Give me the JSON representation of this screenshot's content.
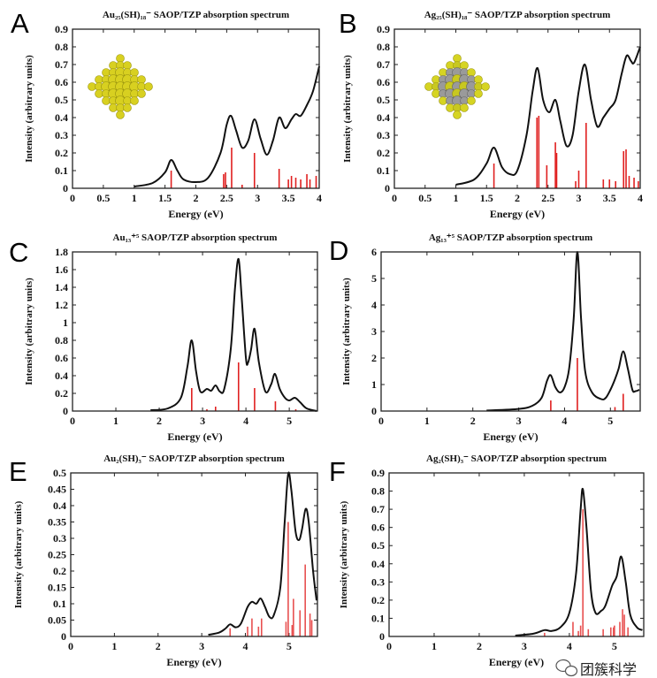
{
  "chart_data": [
    {
      "panel": "A",
      "type": "line",
      "title": "Au₂₅(SH)₁₈⁻ SAOP/TZP absorption spectrum",
      "xlabel": "Energy (eV)",
      "ylabel": "Intensity (arbitrary units)",
      "xlim": [
        0,
        4
      ],
      "ylim": [
        0,
        0.9
      ],
      "xticks": [
        0,
        0.5,
        1,
        1.5,
        2,
        2.5,
        3,
        3.5,
        4
      ],
      "yticks": [
        0,
        0.1,
        0.2,
        0.3,
        0.4,
        0.5,
        0.6,
        0.7,
        0.8,
        0.9
      ],
      "inset": "Au25 cluster structure (yellow)",
      "curve_color": "#111111",
      "stick_color": "#e02020",
      "curve": [
        [
          1.0,
          0.01
        ],
        [
          1.3,
          0.03
        ],
        [
          1.5,
          0.09
        ],
        [
          1.6,
          0.16
        ],
        [
          1.7,
          0.1
        ],
        [
          1.8,
          0.05
        ],
        [
          2.0,
          0.035
        ],
        [
          2.2,
          0.06
        ],
        [
          2.4,
          0.2
        ],
        [
          2.5,
          0.36
        ],
        [
          2.57,
          0.41
        ],
        [
          2.65,
          0.33
        ],
        [
          2.75,
          0.23
        ],
        [
          2.85,
          0.27
        ],
        [
          2.95,
          0.39
        ],
        [
          3.05,
          0.28
        ],
        [
          3.15,
          0.19
        ],
        [
          3.25,
          0.27
        ],
        [
          3.35,
          0.4
        ],
        [
          3.45,
          0.34
        ],
        [
          3.55,
          0.39
        ],
        [
          3.62,
          0.42
        ],
        [
          3.7,
          0.41
        ],
        [
          3.8,
          0.47
        ],
        [
          3.9,
          0.55
        ],
        [
          4.0,
          0.69
        ]
      ],
      "sticks": [
        [
          1.6,
          0.1
        ],
        [
          2.45,
          0.08
        ],
        [
          2.48,
          0.09
        ],
        [
          2.58,
          0.23
        ],
        [
          2.75,
          0.02
        ],
        [
          2.95,
          0.2
        ],
        [
          3.35,
          0.11
        ],
        [
          3.5,
          0.05
        ],
        [
          3.55,
          0.07
        ],
        [
          3.62,
          0.06
        ],
        [
          3.7,
          0.05
        ],
        [
          3.8,
          0.08
        ],
        [
          3.85,
          0.05
        ],
        [
          3.95,
          0.07
        ]
      ]
    },
    {
      "panel": "B",
      "type": "line",
      "title": "Ag₂₅(SH)₁₈⁻ SAOP/TZP absorption spectrum",
      "xlabel": "Energy (eV)",
      "ylabel": "Intensity (arbitrary units)",
      "xlim": [
        0,
        4
      ],
      "ylim": [
        0,
        0.9
      ],
      "xticks": [
        0,
        0.5,
        1,
        1.5,
        2,
        2.5,
        3,
        3.5,
        4
      ],
      "yticks": [
        0,
        0.1,
        0.2,
        0.3,
        0.4,
        0.5,
        0.6,
        0.7,
        0.8,
        0.9
      ],
      "inset": "Ag25 cluster structure (gray/yellow)",
      "curve_color": "#111111",
      "stick_color": "#e02020",
      "curve": [
        [
          1.0,
          0.02
        ],
        [
          1.3,
          0.05
        ],
        [
          1.5,
          0.14
        ],
        [
          1.62,
          0.23
        ],
        [
          1.75,
          0.12
        ],
        [
          1.88,
          0.08
        ],
        [
          2.0,
          0.1
        ],
        [
          2.15,
          0.3
        ],
        [
          2.25,
          0.55
        ],
        [
          2.33,
          0.68
        ],
        [
          2.42,
          0.5
        ],
        [
          2.52,
          0.43
        ],
        [
          2.62,
          0.5
        ],
        [
          2.7,
          0.38
        ],
        [
          2.8,
          0.24
        ],
        [
          2.9,
          0.3
        ],
        [
          3.0,
          0.55
        ],
        [
          3.1,
          0.7
        ],
        [
          3.2,
          0.5
        ],
        [
          3.3,
          0.35
        ],
        [
          3.4,
          0.4
        ],
        [
          3.5,
          0.45
        ],
        [
          3.6,
          0.5
        ],
        [
          3.7,
          0.65
        ],
        [
          3.78,
          0.75
        ],
        [
          3.85,
          0.72
        ],
        [
          3.9,
          0.71
        ],
        [
          4.0,
          0.8
        ]
      ],
      "sticks": [
        [
          1.62,
          0.14
        ],
        [
          2.32,
          0.4
        ],
        [
          2.35,
          0.41
        ],
        [
          2.48,
          0.13
        ],
        [
          2.62,
          0.26
        ],
        [
          2.64,
          0.2
        ],
        [
          2.95,
          0.04
        ],
        [
          3.0,
          0.1
        ],
        [
          3.12,
          0.37
        ],
        [
          3.4,
          0.05
        ],
        [
          3.5,
          0.05
        ],
        [
          3.6,
          0.04
        ],
        [
          3.73,
          0.21
        ],
        [
          3.77,
          0.22
        ],
        [
          3.82,
          0.07
        ],
        [
          3.9,
          0.06
        ],
        [
          3.97,
          0.04
        ]
      ]
    },
    {
      "panel": "C",
      "type": "line",
      "title": "Au₁₃⁺⁵ SAOP/TZP absorption spectrum",
      "xlabel": "Energy (eV)",
      "ylabel": "Intensity (arbitrary units)",
      "xlim": [
        0,
        5.65
      ],
      "ylim": [
        0,
        1.8
      ],
      "xticks": [
        0,
        1,
        2,
        3,
        4,
        5
      ],
      "yticks": [
        0,
        0.2,
        0.4,
        0.6,
        0.8,
        1,
        1.2,
        1.4,
        1.6,
        1.8
      ],
      "curve_color": "#111111",
      "stick_color": "#e02020",
      "curve": [
        [
          1.8,
          0.01
        ],
        [
          2.2,
          0.03
        ],
        [
          2.5,
          0.15
        ],
        [
          2.65,
          0.5
        ],
        [
          2.75,
          0.8
        ],
        [
          2.85,
          0.45
        ],
        [
          2.95,
          0.22
        ],
        [
          3.1,
          0.25
        ],
        [
          3.2,
          0.23
        ],
        [
          3.3,
          0.29
        ],
        [
          3.4,
          0.22
        ],
        [
          3.5,
          0.25
        ],
        [
          3.65,
          0.7
        ],
        [
          3.75,
          1.4
        ],
        [
          3.83,
          1.72
        ],
        [
          3.9,
          1.3
        ],
        [
          4.0,
          0.6
        ],
        [
          4.05,
          0.55
        ],
        [
          4.12,
          0.7
        ],
        [
          4.2,
          0.93
        ],
        [
          4.3,
          0.55
        ],
        [
          4.45,
          0.22
        ],
        [
          4.58,
          0.3
        ],
        [
          4.67,
          0.42
        ],
        [
          4.78,
          0.25
        ],
        [
          4.9,
          0.15
        ],
        [
          5.0,
          0.12
        ],
        [
          5.13,
          0.15
        ],
        [
          5.25,
          0.1
        ],
        [
          5.4,
          0.03
        ],
        [
          5.63,
          0.0
        ]
      ],
      "sticks": [
        [
          2.75,
          0.26
        ],
        [
          3.1,
          0.02
        ],
        [
          3.3,
          0.05
        ],
        [
          3.83,
          0.55
        ],
        [
          4.2,
          0.26
        ],
        [
          4.68,
          0.11
        ],
        [
          5.15,
          0.02
        ]
      ]
    },
    {
      "panel": "D",
      "type": "line",
      "title": "Ag₁₃⁺⁵ SAOP/TZP absorption spectrum",
      "xlabel": "Energy (eV)",
      "ylabel": "Intensity (arbitrary units)",
      "xlim": [
        0,
        5.65
      ],
      "ylim": [
        0,
        6
      ],
      "xticks": [
        0,
        1,
        2,
        3,
        4,
        5
      ],
      "yticks": [
        0,
        1,
        2,
        3,
        4,
        5,
        6
      ],
      "curve_color": "#111111",
      "stick_color": "#e02020",
      "curve": [
        [
          2.3,
          0.02
        ],
        [
          3.0,
          0.08
        ],
        [
          3.3,
          0.2
        ],
        [
          3.5,
          0.5
        ],
        [
          3.62,
          1.15
        ],
        [
          3.7,
          1.35
        ],
        [
          3.8,
          0.9
        ],
        [
          3.9,
          0.7
        ],
        [
          4.0,
          0.9
        ],
        [
          4.1,
          1.6
        ],
        [
          4.2,
          3.5
        ],
        [
          4.28,
          6.0
        ],
        [
          4.36,
          3.5
        ],
        [
          4.45,
          1.5
        ],
        [
          4.6,
          0.7
        ],
        [
          4.8,
          0.45
        ],
        [
          4.9,
          0.5
        ],
        [
          5.0,
          0.8
        ],
        [
          5.1,
          1.2
        ],
        [
          5.18,
          1.6
        ],
        [
          5.28,
          2.25
        ],
        [
          5.38,
          1.6
        ],
        [
          5.48,
          0.8
        ],
        [
          5.55,
          0.75
        ],
        [
          5.63,
          0.8
        ]
      ],
      "sticks": [
        [
          3.7,
          0.4
        ],
        [
          4.28,
          2.0
        ],
        [
          5.1,
          0.15
        ],
        [
          5.28,
          0.65
        ]
      ]
    },
    {
      "panel": "E",
      "type": "line",
      "title": "Au₂(SH)₃⁻ SAOP/TZP absorption spectrum",
      "xlabel": "Energy (eV)",
      "ylabel": "Intensity (arbitrary units)",
      "xlim": [
        0,
        5.65
      ],
      "ylim": [
        0,
        0.5
      ],
      "xticks": [
        0,
        1,
        2,
        3,
        4,
        5
      ],
      "yticks": [
        0,
        0.05,
        0.1,
        0.15,
        0.2,
        0.25,
        0.3,
        0.35,
        0.4,
        0.45,
        0.5
      ],
      "curve_color": "#111111",
      "stick_color": "#e85050",
      "curve": [
        [
          3.15,
          0.005
        ],
        [
          3.4,
          0.012
        ],
        [
          3.55,
          0.025
        ],
        [
          3.65,
          0.037
        ],
        [
          3.78,
          0.028
        ],
        [
          3.9,
          0.04
        ],
        [
          4.05,
          0.09
        ],
        [
          4.15,
          0.106
        ],
        [
          4.25,
          0.1
        ],
        [
          4.35,
          0.116
        ],
        [
          4.45,
          0.09
        ],
        [
          4.55,
          0.06
        ],
        [
          4.65,
          0.065
        ],
        [
          4.8,
          0.15
        ],
        [
          4.9,
          0.35
        ],
        [
          4.98,
          0.497
        ],
        [
          5.05,
          0.45
        ],
        [
          5.15,
          0.32
        ],
        [
          5.23,
          0.295
        ],
        [
          5.3,
          0.33
        ],
        [
          5.38,
          0.39
        ],
        [
          5.45,
          0.35
        ],
        [
          5.55,
          0.2
        ],
        [
          5.63,
          0.11
        ]
      ],
      "sticks": [
        [
          3.65,
          0.025
        ],
        [
          4.05,
          0.03
        ],
        [
          4.15,
          0.055
        ],
        [
          4.3,
          0.03
        ],
        [
          4.37,
          0.055
        ],
        [
          4.93,
          0.045
        ],
        [
          4.98,
          0.35
        ],
        [
          5.07,
          0.035
        ],
        [
          5.1,
          0.115
        ],
        [
          5.25,
          0.08
        ],
        [
          5.37,
          0.22
        ],
        [
          5.48,
          0.07
        ],
        [
          5.52,
          0.05
        ]
      ]
    },
    {
      "panel": "F",
      "type": "line",
      "title": "Ag₂(SH)₃⁻ SAOP/TZP absorption spectrum",
      "xlabel": "Energy (eV)",
      "ylabel": "Intensity (arbitrary units)",
      "xlim": [
        0,
        5.65
      ],
      "ylim": [
        0,
        0.9
      ],
      "xticks": [
        0,
        1,
        2,
        3,
        4,
        5
      ],
      "yticks": [
        0,
        0.1,
        0.2,
        0.3,
        0.4,
        0.5,
        0.6,
        0.7,
        0.8,
        0.9
      ],
      "curve_color": "#111111",
      "stick_color": "#e85050",
      "curve": [
        [
          2.8,
          0.005
        ],
        [
          3.2,
          0.015
        ],
        [
          3.45,
          0.035
        ],
        [
          3.6,
          0.03
        ],
        [
          3.8,
          0.05
        ],
        [
          4.0,
          0.13
        ],
        [
          4.15,
          0.35
        ],
        [
          4.25,
          0.7
        ],
        [
          4.3,
          0.81
        ],
        [
          4.38,
          0.6
        ],
        [
          4.48,
          0.25
        ],
        [
          4.58,
          0.13
        ],
        [
          4.7,
          0.14
        ],
        [
          4.8,
          0.17
        ],
        [
          4.95,
          0.28
        ],
        [
          5.05,
          0.33
        ],
        [
          5.15,
          0.44
        ],
        [
          5.25,
          0.3
        ],
        [
          5.35,
          0.12
        ],
        [
          5.5,
          0.05
        ],
        [
          5.62,
          0.035
        ]
      ],
      "sticks": [
        [
          3.45,
          0.02
        ],
        [
          4.08,
          0.08
        ],
        [
          4.2,
          0.03
        ],
        [
          4.25,
          0.06
        ],
        [
          4.3,
          0.7
        ],
        [
          4.42,
          0.04
        ],
        [
          4.75,
          0.04
        ],
        [
          4.92,
          0.05
        ],
        [
          4.98,
          0.05
        ],
        [
          5.0,
          0.06
        ],
        [
          5.12,
          0.08
        ],
        [
          5.18,
          0.15
        ],
        [
          5.22,
          0.12
        ],
        [
          5.3,
          0.05
        ]
      ]
    }
  ],
  "watermark": {
    "text": "团簇科学",
    "icon": "wechat-icon"
  }
}
